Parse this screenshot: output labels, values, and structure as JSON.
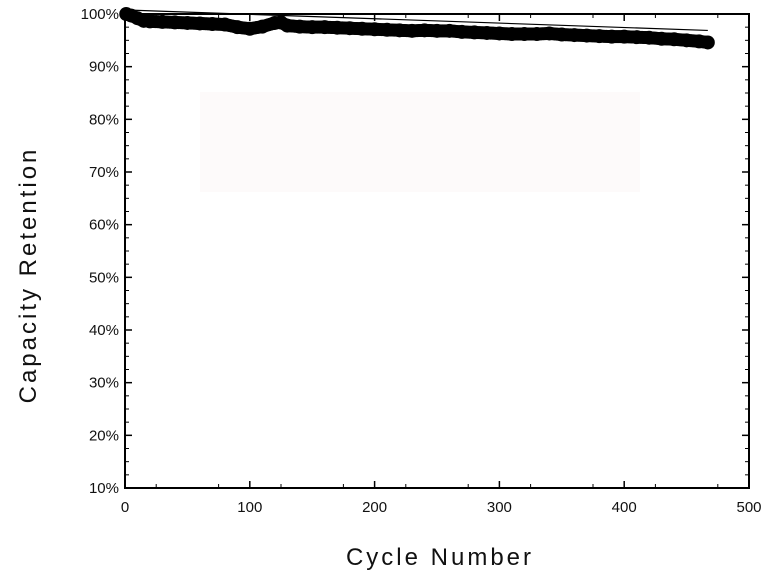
{
  "chart_data": {
    "type": "scatter",
    "title": "",
    "xlabel": "Cycle Number",
    "ylabel": "Capacity Retention",
    "xlim": [
      0,
      500
    ],
    "ylim": [
      10,
      100
    ],
    "x_ticks": [
      0,
      100,
      200,
      300,
      400,
      500
    ],
    "y_ticks": [
      10,
      20,
      30,
      40,
      50,
      60,
      70,
      80,
      90,
      100
    ],
    "x_tick_labels": [
      "0",
      "100",
      "200",
      "300",
      "400",
      "500"
    ],
    "y_tick_labels": [
      "10%",
      "20%",
      "30%",
      "40%",
      "50%",
      "60%",
      "70%",
      "80%",
      "90%",
      "100%"
    ],
    "grid": false,
    "legend": "none",
    "marker_color": "#000000",
    "series": [
      {
        "x": [
          1,
          5,
          10,
          15,
          20,
          30,
          40,
          50,
          60,
          70,
          80,
          90,
          100,
          110,
          120,
          125,
          130,
          140,
          150,
          160,
          170,
          180,
          190,
          200,
          210,
          220,
          230,
          240,
          250,
          260,
          270,
          280,
          290,
          300,
          310,
          320,
          330,
          340,
          350,
          360,
          370,
          380,
          390,
          400,
          410,
          420,
          430,
          440,
          450,
          460,
          467
        ],
        "y": [
          100,
          99.7,
          99.2,
          98.7,
          98.6,
          98.5,
          98.4,
          98.3,
          98.2,
          98.1,
          98.0,
          97.5,
          97.2,
          97.6,
          98.3,
          98.4,
          97.8,
          97.6,
          97.5,
          97.5,
          97.4,
          97.3,
          97.2,
          97.1,
          97.0,
          96.9,
          96.8,
          96.9,
          96.8,
          96.8,
          96.6,
          96.5,
          96.4,
          96.3,
          96.2,
          96.2,
          96.2,
          96.3,
          96.1,
          96.0,
          95.9,
          95.8,
          95.7,
          95.7,
          95.6,
          95.5,
          95.3,
          95.2,
          95.0,
          94.8,
          94.6
        ]
      }
    ]
  }
}
